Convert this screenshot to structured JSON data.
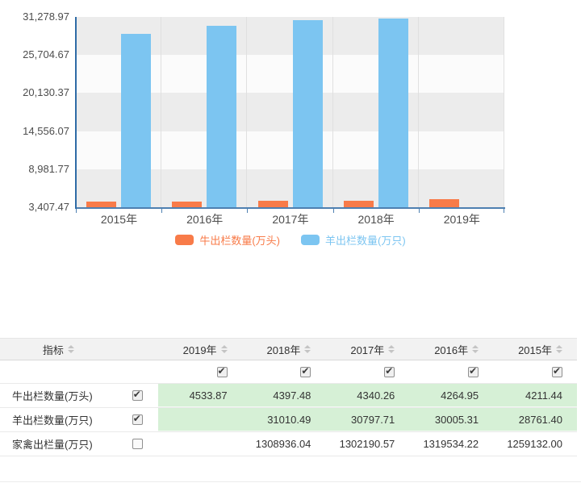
{
  "chart": {
    "y_axis_labels": [
      "31,278.97",
      "25,704.67",
      "20,130.37",
      "14,556.07",
      "8,981.77",
      "3,407.47"
    ],
    "x_axis_labels": [
      "2015年",
      "2016年",
      "2017年",
      "2018年",
      "2019年"
    ],
    "legend": [
      {
        "label": "牛出栏数量(万头)",
        "color": "#f87b49"
      },
      {
        "label": "羊出栏数量(万只)",
        "color": "#7cc5f1"
      }
    ]
  },
  "chart_data": {
    "type": "bar",
    "categories": [
      "2015年",
      "2016年",
      "2017年",
      "2018年",
      "2019年"
    ],
    "series": [
      {
        "name": "牛出栏数量(万头)",
        "color": "#f87b49",
        "values": [
          4211.44,
          4264.95,
          4340.26,
          4397.48,
          4533.87
        ]
      },
      {
        "name": "羊出栏数量(万只)",
        "color": "#7cc5f1",
        "values": [
          28761.4,
          30005.31,
          30797.71,
          31010.49,
          null
        ]
      }
    ],
    "title": "",
    "xlabel": "",
    "ylabel": "",
    "ylim": [
      3407.47,
      31278.97
    ],
    "yticks": [
      3407.47,
      8981.77,
      14556.07,
      20130.37,
      25704.67,
      31278.97
    ],
    "ytick_labels": [
      "3,407.47",
      "8,981.77",
      "14,556.07",
      "20,130.37",
      "25,704.67",
      "31,278.97"
    ],
    "grid": "horizontal-bands-and-vertical-lines",
    "legend_position": "bottom"
  },
  "table": {
    "index_header": "指标",
    "year_columns": [
      "2019年",
      "2018年",
      "2017年",
      "2016年",
      "2015年"
    ],
    "column_checkboxes": [
      true,
      true,
      true,
      true,
      true
    ],
    "rows": [
      {
        "label": "牛出栏数量(万头)",
        "checked": true,
        "highlight": true,
        "values": [
          "4533.87",
          "4397.48",
          "4340.26",
          "4264.95",
          "4211.44"
        ]
      },
      {
        "label": "羊出栏数量(万只)",
        "checked": true,
        "highlight": true,
        "values": [
          "",
          "31010.49",
          "30797.71",
          "30005.31",
          "28761.40"
        ]
      },
      {
        "label": "家禽出栏量(万只)",
        "checked": false,
        "highlight": false,
        "values": [
          "",
          "1308936.04",
          "1302190.57",
          "1319534.22",
          "1259132.00"
        ]
      }
    ]
  },
  "colors": {
    "bar_cattle": "#f87b49",
    "bar_sheep": "#7cc5f1",
    "band_gray": "#ececec",
    "band_light": "#fbfbfb",
    "gridline": "#e0e0e0",
    "y_axis_line": "#2e6ba6",
    "x_axis_line": "#4e80b1",
    "axis_text": "#4d4d4d",
    "header_bg": "#f2f2f2",
    "row_highlight": "#d6f0d6",
    "table_text": "#333333"
  }
}
